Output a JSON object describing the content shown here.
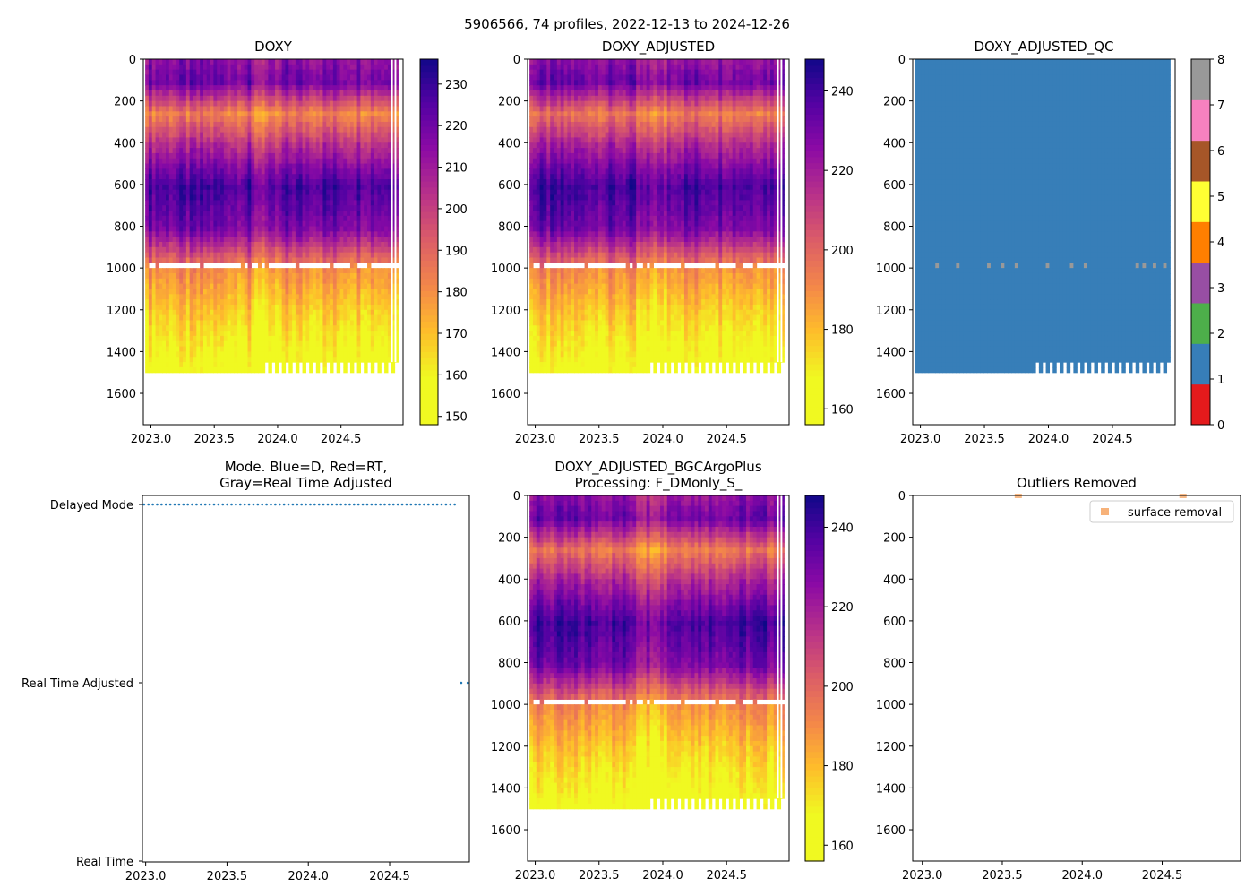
{
  "suptitle": "5906566, 74 profiles, 2022-12-13 to 2024-12-26",
  "chart_data": [
    {
      "id": "doxy",
      "type": "heatmap",
      "title": "DOXY",
      "x_ticks": [
        2023.0,
        2023.5,
        2024.0,
        2024.5
      ],
      "x_tick_labels": [
        "2023.0",
        "2023.5",
        "2024.0",
        "2024.5"
      ],
      "xlim": [
        2022.94,
        2024.99
      ],
      "y_ticks": [
        0,
        200,
        400,
        600,
        800,
        1000,
        1200,
        1400,
        1600
      ],
      "y_tick_labels": [
        "0",
        "200",
        "400",
        "600",
        "800",
        "1000",
        "1200",
        "1400",
        "1600"
      ],
      "ylim": [
        1750,
        0
      ],
      "colormap": "plasma_r",
      "colorbar": {
        "min": 148,
        "max": 236,
        "ticks": [
          150,
          160,
          170,
          180,
          190,
          200,
          210,
          220,
          230
        ],
        "tick_labels": [
          "150",
          "160",
          "170",
          "180",
          "190",
          "200",
          "210",
          "220",
          "230"
        ]
      },
      "profile_bottom_depth_m": 1500,
      "data_gap_depth_m": 990,
      "value_by_depth": [
        [
          0,
          215
        ],
        [
          100,
          220
        ],
        [
          250,
          183
        ],
        [
          400,
          205
        ],
        [
          600,
          228
        ],
        [
          800,
          218
        ],
        [
          1000,
          180
        ],
        [
          1200,
          168
        ],
        [
          1400,
          158
        ],
        [
          1500,
          152
        ]
      ]
    },
    {
      "id": "doxy_adjusted",
      "type": "heatmap",
      "title": "DOXY_ADJUSTED",
      "x_ticks": [
        2023.0,
        2023.5,
        2024.0,
        2024.5
      ],
      "x_tick_labels": [
        "2023.0",
        "2023.5",
        "2024.0",
        "2024.5"
      ],
      "xlim": [
        2022.94,
        2024.99
      ],
      "y_ticks": [
        0,
        200,
        400,
        600,
        800,
        1000,
        1200,
        1400,
        1600
      ],
      "y_tick_labels": [
        "0",
        "200",
        "400",
        "600",
        "800",
        "1000",
        "1200",
        "1400",
        "1600"
      ],
      "ylim": [
        1750,
        0
      ],
      "colormap": "plasma_r",
      "colorbar": {
        "min": 156,
        "max": 248,
        "ticks": [
          160,
          180,
          200,
          220,
          240
        ],
        "tick_labels": [
          "160",
          "180",
          "200",
          "220",
          "240"
        ]
      },
      "profile_bottom_depth_m": 1500,
      "data_gap_depth_m": 990,
      "value_by_depth": [
        [
          0,
          225
        ],
        [
          100,
          232
        ],
        [
          250,
          195
        ],
        [
          400,
          218
        ],
        [
          600,
          240
        ],
        [
          800,
          230
        ],
        [
          1000,
          190
        ],
        [
          1200,
          177
        ],
        [
          1400,
          167
        ],
        [
          1500,
          160
        ]
      ]
    },
    {
      "id": "doxy_adjusted_qc",
      "type": "heatmap",
      "title": "DOXY_ADJUSTED_QC",
      "x_ticks": [
        2023.0,
        2023.5,
        2024.0,
        2024.5
      ],
      "x_tick_labels": [
        "2023.0",
        "2023.5",
        "2024.0",
        "2024.5"
      ],
      "xlim": [
        2022.94,
        2024.99
      ],
      "y_ticks": [
        0,
        200,
        400,
        600,
        800,
        1000,
        1200,
        1400,
        1600
      ],
      "y_tick_labels": [
        "0",
        "200",
        "400",
        "600",
        "800",
        "1000",
        "1200",
        "1400",
        "1600"
      ],
      "ylim": [
        1750,
        0
      ],
      "colorbar": {
        "min": 0,
        "max": 8,
        "ticks": [
          0,
          1,
          2,
          3,
          4,
          5,
          6,
          7,
          8
        ],
        "tick_labels": [
          "0",
          "1",
          "2",
          "3",
          "4",
          "5",
          "6",
          "7",
          "8"
        ]
      },
      "qc_colors": [
        "#e41a1c",
        "#377eb8",
        "#4daf4a",
        "#984ea3",
        "#ff7f00",
        "#ffff33",
        "#a65628",
        "#f781bf",
        "#999999"
      ],
      "dominant_flag": 1,
      "secondary_flag": 8,
      "profile_bottom_depth_m": 1500
    },
    {
      "id": "mode",
      "type": "scatter",
      "title": "Mode. Blue=D, Red=RT,\nGray=Real Time Adjusted",
      "x_ticks": [
        2023.0,
        2023.5,
        2024.0,
        2024.5
      ],
      "x_tick_labels": [
        "2023.0",
        "2023.5",
        "2024.0",
        "2024.5"
      ],
      "xlim": [
        2022.98,
        2024.99
      ],
      "y_categories": [
        "Real Time",
        "Real Time Adjusted",
        "Delayed Mode"
      ],
      "series": [
        {
          "name": "Delayed Mode",
          "level": 2,
          "x_start": 2022.99,
          "x_end": 2024.9,
          "count": 72,
          "color": "#1f77b4"
        },
        {
          "name": "Real Time Adjusted",
          "level": 1,
          "x": [
            2024.94,
            2024.98
          ],
          "color": "#1f77b4"
        }
      ]
    },
    {
      "id": "doxy_adjusted_bgcargoplus",
      "type": "heatmap",
      "title": "DOXY_ADJUSTED_BGCArgoPlus\nProcessing: F_DMonly_S_",
      "x_ticks": [
        2023.0,
        2023.5,
        2024.0,
        2024.5
      ],
      "x_tick_labels": [
        "2023.0",
        "2023.5",
        "2024.0",
        "2024.5"
      ],
      "xlim": [
        2022.94,
        2024.99
      ],
      "y_ticks": [
        0,
        200,
        400,
        600,
        800,
        1000,
        1200,
        1400,
        1600
      ],
      "y_tick_labels": [
        "0",
        "200",
        "400",
        "600",
        "800",
        "1000",
        "1200",
        "1400",
        "1600"
      ],
      "ylim": [
        1750,
        0
      ],
      "colormap": "plasma_r",
      "colorbar": {
        "min": 156,
        "max": 248,
        "ticks": [
          160,
          180,
          200,
          220,
          240
        ],
        "tick_labels": [
          "160",
          "180",
          "200",
          "220",
          "240"
        ]
      },
      "profile_bottom_depth_m": 1500,
      "data_gap_depth_m": 990,
      "value_by_depth": [
        [
          0,
          225
        ],
        [
          100,
          232
        ],
        [
          250,
          195
        ],
        [
          400,
          218
        ],
        [
          600,
          240
        ],
        [
          800,
          230
        ],
        [
          1000,
          190
        ],
        [
          1200,
          177
        ],
        [
          1400,
          167
        ],
        [
          1500,
          160
        ]
      ]
    },
    {
      "id": "outliers",
      "type": "scatter",
      "title": "Outliers Removed",
      "x_ticks": [
        2023.0,
        2023.5,
        2024.0,
        2024.5
      ],
      "x_tick_labels": [
        "2023.0",
        "2023.5",
        "2024.0",
        "2024.5"
      ],
      "xlim": [
        2022.94,
        2024.99
      ],
      "y_ticks": [
        0,
        200,
        400,
        600,
        800,
        1000,
        1200,
        1400,
        1600
      ],
      "y_tick_labels": [
        "0",
        "200",
        "400",
        "600",
        "800",
        "1000",
        "1200",
        "1400",
        "1600"
      ],
      "ylim": [
        1750,
        0
      ],
      "legend": {
        "position": "upper right",
        "entries": [
          "surface removal"
        ]
      },
      "series": [
        {
          "name": "surface removal",
          "color": "#f7b27a",
          "points": [
            [
              2023.6,
              0
            ],
            [
              2024.63,
              0
            ]
          ]
        }
      ]
    }
  ]
}
